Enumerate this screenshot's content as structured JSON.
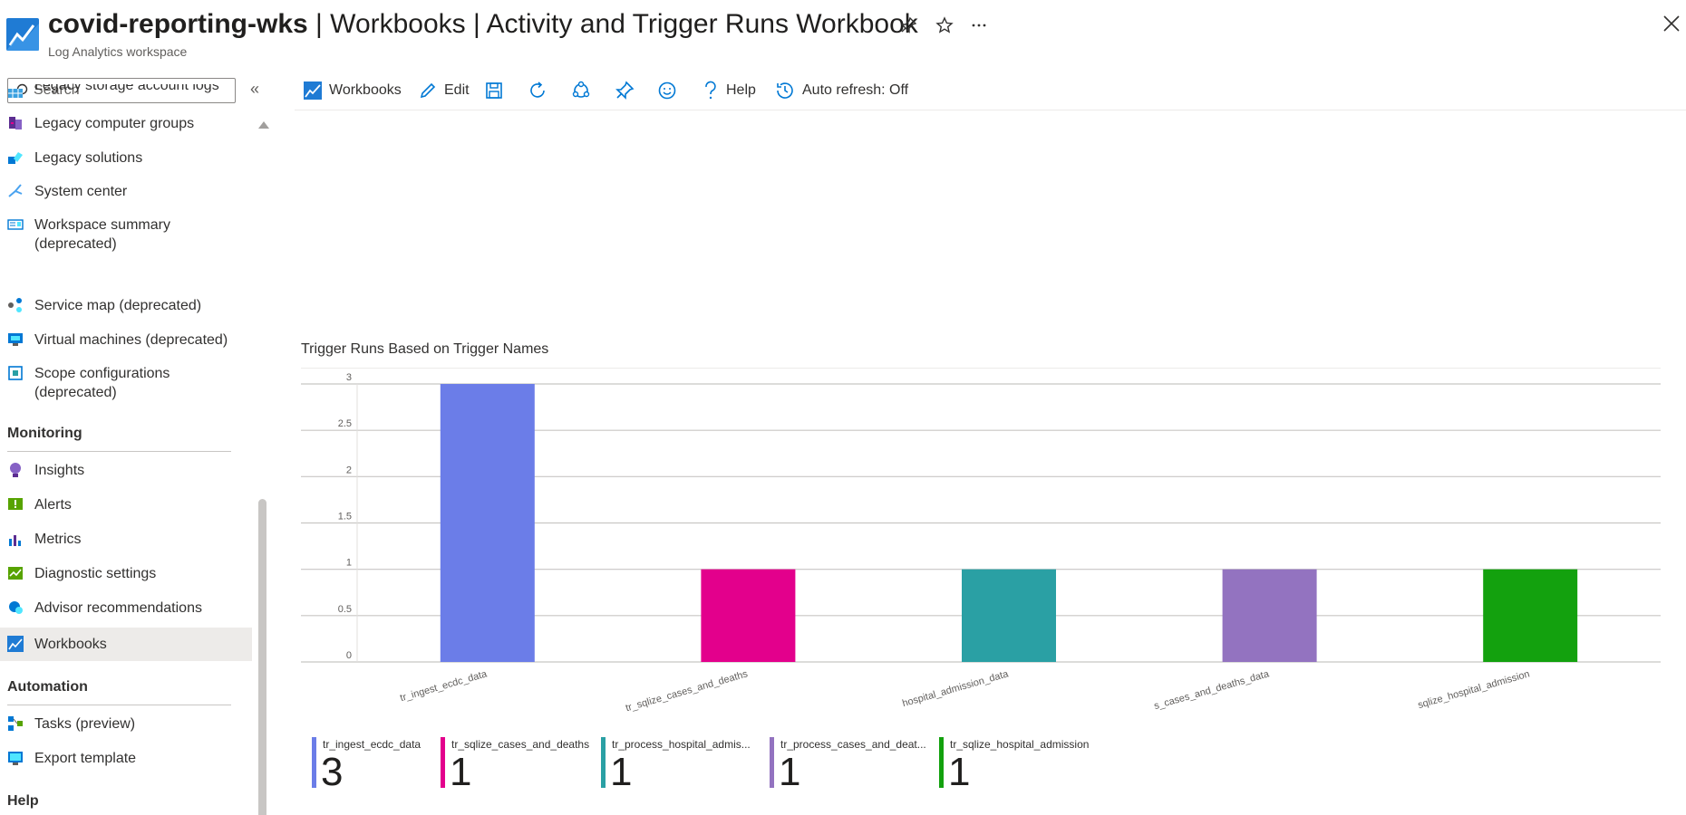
{
  "header": {
    "resource_name": "covid-reporting-wks",
    "breadcrumb": " | Workbooks | Activity and Trigger Runs Workbook",
    "subtitle": "Log Analytics workspace"
  },
  "sidebar": {
    "search_placeholder": "Search",
    "items_top": [
      {
        "label": "Legacy storage account logs",
        "icon": "storage-logs-icon"
      },
      {
        "label": "Legacy computer groups",
        "icon": "computer-groups-icon"
      },
      {
        "label": "Legacy solutions",
        "icon": "solutions-icon"
      },
      {
        "label": "System center",
        "icon": "system-center-icon"
      },
      {
        "label": "Workspace summary\n(deprecated)",
        "icon": "workspace-summary-icon"
      },
      {
        "label": "Service map (deprecated)",
        "icon": "service-map-icon"
      },
      {
        "label": "Virtual machines (deprecated)",
        "icon": "virtual-machines-icon"
      },
      {
        "label": "Scope configurations\n(deprecated)",
        "icon": "scope-config-icon"
      }
    ],
    "monitoring_header": "Monitoring",
    "monitoring_items": [
      {
        "label": "Insights",
        "icon": "insights-icon"
      },
      {
        "label": "Alerts",
        "icon": "alerts-icon"
      },
      {
        "label": "Metrics",
        "icon": "metrics-icon"
      },
      {
        "label": "Diagnostic settings",
        "icon": "diagnostic-settings-icon"
      },
      {
        "label": "Advisor recommendations",
        "icon": "advisor-icon"
      },
      {
        "label": "Workbooks",
        "icon": "workbooks-icon",
        "active": true
      }
    ],
    "automation_header": "Automation",
    "automation_items": [
      {
        "label": "Tasks (preview)",
        "icon": "tasks-icon"
      },
      {
        "label": "Export template",
        "icon": "export-template-icon"
      }
    ],
    "help_header": "Help"
  },
  "toolbar": {
    "workbooks_label": "Workbooks",
    "edit_label": "Edit",
    "help_label": "Help",
    "auto_refresh_label": "Auto refresh: Off"
  },
  "chart_data": {
    "type": "bar",
    "title": "Trigger Runs Based on Trigger Names",
    "categories": [
      "tr_ingest_ecdc_data",
      "tr_sqlize_cases_and_deaths",
      "tr_process_hospital_admission_data",
      "tr_process_cases_and_deaths_data",
      "tr_sqlize_hospital_admission"
    ],
    "category_labels_shown": [
      "tr_ingest_ecdc_data",
      "tr_sqlize_cases_and_deaths",
      "hospital_admission_data",
      "s_cases_and_deaths_data",
      "sqlize_hospital_admission"
    ],
    "values": [
      3,
      1,
      1,
      1,
      1
    ],
    "colors": [
      "#6b7de8",
      "#e3008c",
      "#2aa0a4",
      "#9373c0",
      "#13a10e"
    ],
    "ylim": [
      0,
      3
    ],
    "yticks": [
      "0",
      "0.5",
      "1",
      "1.5",
      "2",
      "2.5",
      "3"
    ],
    "grid": true
  },
  "tiles": [
    {
      "name": "tr_ingest_ecdc_data",
      "value": "3",
      "color": "#6b7de8"
    },
    {
      "name": "tr_sqlize_cases_and_deaths",
      "value": "1",
      "color": "#e3008c"
    },
    {
      "name": "tr_process_hospital_admis...",
      "value": "1",
      "color": "#2aa0a4"
    },
    {
      "name": "tr_process_cases_and_deat...",
      "value": "1",
      "color": "#9373c0"
    },
    {
      "name": "tr_sqlize_hospital_admission",
      "value": "1",
      "color": "#13a10e"
    }
  ]
}
